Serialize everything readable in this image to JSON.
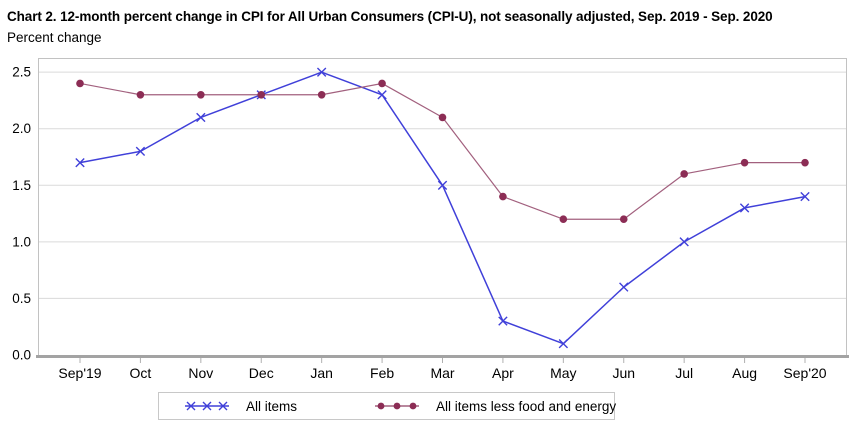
{
  "header": {
    "title": "Chart 2. 12-month percent change in CPI for All Urban Consumers (CPI-U), not seasonally adjusted, Sep. 2019 - Sep. 2020",
    "subtitle": "Percent change"
  },
  "colors": {
    "all_items_line": "#4040d9",
    "core_line": "#a2607e",
    "core_marker": "#8c2d55",
    "gridline": "#dadada",
    "plot_border": "#c2c2c2",
    "axis_line": "#a3a3a3",
    "tick": "#b0b0b0",
    "text": "#000000"
  },
  "chart_data": {
    "type": "line",
    "title": "Chart 2. 12-month percent change in CPI for All Urban Consumers (CPI-U), not seasonally adjusted, Sep. 2019 - Sep. 2020",
    "ylabel": "Percent change",
    "xlabel": "",
    "categories": [
      "Sep'19",
      "Oct",
      "Nov",
      "Dec",
      "Jan",
      "Feb",
      "Mar",
      "Apr",
      "May",
      "Jun",
      "Jul",
      "Aug",
      "Sep'20"
    ],
    "series": [
      {
        "name": "All items",
        "marker": "x",
        "line_color": "#4040d9",
        "marker_color": "#4040d9",
        "values": [
          1.7,
          1.8,
          2.1,
          2.3,
          2.5,
          2.3,
          1.5,
          0.3,
          0.1,
          0.6,
          1.0,
          1.3,
          1.4
        ]
      },
      {
        "name": "All items less food and energy",
        "marker": "dot",
        "line_color": "#a2607e",
        "marker_color": "#8c2d55",
        "values": [
          2.4,
          2.3,
          2.3,
          2.3,
          2.3,
          2.4,
          2.1,
          1.4,
          1.2,
          1.2,
          1.6,
          1.7,
          1.7
        ]
      }
    ],
    "ylim": [
      0,
      2.625
    ],
    "yticks": [
      0.0,
      0.5,
      1.0,
      1.5,
      2.0,
      2.5
    ],
    "ytick_labels": [
      "0.0",
      "0.5",
      "1.0",
      "1.5",
      "2.0",
      "2.5"
    ],
    "grid": true,
    "legend_position": "bottom"
  }
}
